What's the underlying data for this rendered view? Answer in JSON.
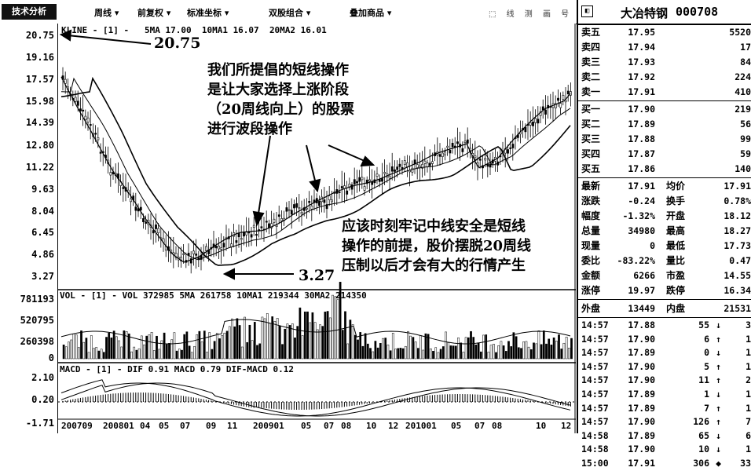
{
  "toolbar": {
    "tech_button": "技术分析",
    "menus": [
      "周线 ▾",
      "前复权 ▾",
      "标准坐标 ▾",
      "双股组合 ▾",
      "叠加商品 ▾"
    ],
    "tool_icons": "⬚ 线 测 画 号 辅"
  },
  "y_axis": {
    "price_ticks": [
      "20.75",
      "19.16",
      "17.57",
      "15.98",
      "14.39",
      "12.80",
      "11.22",
      "9.63",
      "8.04",
      "6.45",
      "4.86",
      "3.27"
    ],
    "vol_ticks": [
      "781193",
      "520795",
      "260398",
      "0"
    ],
    "macd_ticks": [
      "2.10",
      "0.20",
      "-1.71"
    ]
  },
  "price_pane": {
    "legend_name": "KLINE - [1] -",
    "ma5": "5MA 17.00",
    "ma10": "10MA1 16.07",
    "ma20": "20MA2 16.01",
    "high_label": "20.75",
    "low_label": "3.27"
  },
  "vol_pane": {
    "legend": "VOL - [1] -  VOL 372985  5MA 261758  10MA1 219344  30MA2 214350"
  },
  "macd_pane": {
    "legend": "MACD - [1] -  DIF 0.91  MACD 0.79  DIF-MACD 0.12"
  },
  "x_axis": [
    "200709",
    "200801",
    "04",
    "05",
    "07",
    "09",
    "11",
    "200901",
    "05",
    "07",
    "08",
    "10",
    "12",
    "201001",
    "05",
    "07",
    "08",
    "10",
    "12"
  ],
  "annotations": {
    "top_note": [
      "我们所提倡的短线操作",
      "是让大家选择上涨阶段",
      "（20周线向上）的股票",
      "进行波段操作"
    ],
    "bottom_note": [
      "应该时刻牢记中线安全是短线",
      "操作的前提，股价摆脱20周线",
      "压制以后才会有大的行情产生"
    ]
  },
  "quote_panel": {
    "stock_name": "大冶特钢",
    "stock_code": "000708",
    "asks": [
      {
        "label": "卖五",
        "price": "17.95",
        "vol": "5520"
      },
      {
        "label": "卖四",
        "price": "17.94",
        "vol": "17"
      },
      {
        "label": "卖三",
        "price": "17.93",
        "vol": "84"
      },
      {
        "label": "卖二",
        "price": "17.92",
        "vol": "224"
      },
      {
        "label": "卖一",
        "price": "17.91",
        "vol": "410"
      }
    ],
    "bids": [
      {
        "label": "买一",
        "price": "17.90",
        "vol": "219"
      },
      {
        "label": "买二",
        "price": "17.89",
        "vol": "56"
      },
      {
        "label": "买三",
        "price": "17.88",
        "vol": "99"
      },
      {
        "label": "买四",
        "price": "17.87",
        "vol": "59"
      },
      {
        "label": "买五",
        "price": "17.86",
        "vol": "140"
      }
    ],
    "stats": [
      {
        "l1": "最新",
        "v1": "17.91",
        "l2": "均价",
        "v2": "17.91"
      },
      {
        "l1": "涨跌",
        "v1": "-0.24",
        "l2": "换手",
        "v2": "0.78%"
      },
      {
        "l1": "幅度",
        "v1": "-1.32%",
        "l2": "开盘",
        "v2": "18.12"
      },
      {
        "l1": "总量",
        "v1": "34980",
        "l2": "最高",
        "v2": "18.27"
      },
      {
        "l1": "现量",
        "v1": "0",
        "l2": "最低",
        "v2": "17.73"
      },
      {
        "l1": "委比",
        "v1": "-83.22%",
        "l2": "量比",
        "v2": "0.47"
      },
      {
        "l1": "金额",
        "v1": "6266",
        "l2": "市盈",
        "v2": "14.55"
      },
      {
        "l1": "涨停",
        "v1": "19.97",
        "l2": "跌停",
        "v2": "16.34"
      }
    ],
    "outer_label": "外盘",
    "outer_value": "13449",
    "inner_label": "内盘",
    "inner_value": "21531",
    "ticks": [
      {
        "time": "14:57",
        "price": "17.88",
        "vol": "55",
        "dir": "↓",
        "num": "3"
      },
      {
        "time": "14:57",
        "price": "17.90",
        "vol": "6",
        "dir": "↑",
        "num": "1"
      },
      {
        "time": "14:57",
        "price": "17.89",
        "vol": "0",
        "dir": "↓",
        "num": "1"
      },
      {
        "time": "14:57",
        "price": "17.90",
        "vol": "5",
        "dir": "↑",
        "num": "1"
      },
      {
        "time": "14:57",
        "price": "17.90",
        "vol": "11",
        "dir": "↑",
        "num": "2"
      },
      {
        "time": "14:57",
        "price": "17.89",
        "vol": "1",
        "dir": "↓",
        "num": "1"
      },
      {
        "time": "14:57",
        "price": "17.89",
        "vol": "7",
        "dir": "↑",
        "num": "1"
      },
      {
        "time": "14:57",
        "price": "17.90",
        "vol": "126",
        "dir": "↑",
        "num": "7"
      },
      {
        "time": "14:58",
        "price": "17.89",
        "vol": "65",
        "dir": "↓",
        "num": "6"
      },
      {
        "time": "14:58",
        "price": "17.90",
        "vol": "10",
        "dir": "↓",
        "num": "1"
      },
      {
        "time": "15:00",
        "price": "17.91",
        "vol": "306",
        "dir": "◆",
        "num": "33"
      }
    ]
  }
}
